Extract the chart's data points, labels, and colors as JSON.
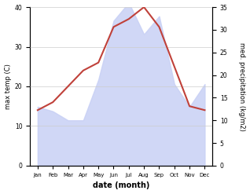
{
  "months": [
    "Jan",
    "Feb",
    "Mar",
    "Apr",
    "May",
    "Jun",
    "Jul",
    "Aug",
    "Sep",
    "Oct",
    "Nov",
    "Dec"
  ],
  "x": [
    0,
    1,
    2,
    3,
    4,
    5,
    6,
    7,
    8,
    9,
    10,
    11
  ],
  "temp": [
    14,
    16,
    20,
    24,
    26,
    35,
    37,
    40,
    35,
    25,
    15,
    14
  ],
  "precip": [
    13,
    12,
    10,
    10,
    19,
    32,
    36,
    29,
    33,
    18,
    13,
    18
  ],
  "temp_color": "#c0413a",
  "precip_fill_color": "#c8d0f5",
  "precip_fill_alpha": 0.85,
  "background_color": "#ffffff",
  "xlabel": "date (month)",
  "ylabel_left": "max temp (C)",
  "ylabel_right": "med. precipitation (kg/m2)",
  "ylim_left": [
    0,
    40
  ],
  "ylim_right": [
    0,
    35
  ],
  "yticks_left": [
    0,
    10,
    20,
    30,
    40
  ],
  "yticks_right": [
    0,
    5,
    10,
    15,
    20,
    25,
    30,
    35
  ],
  "line_width": 1.5,
  "grid_color": "#cccccc",
  "spine_color": "#aaaaaa"
}
